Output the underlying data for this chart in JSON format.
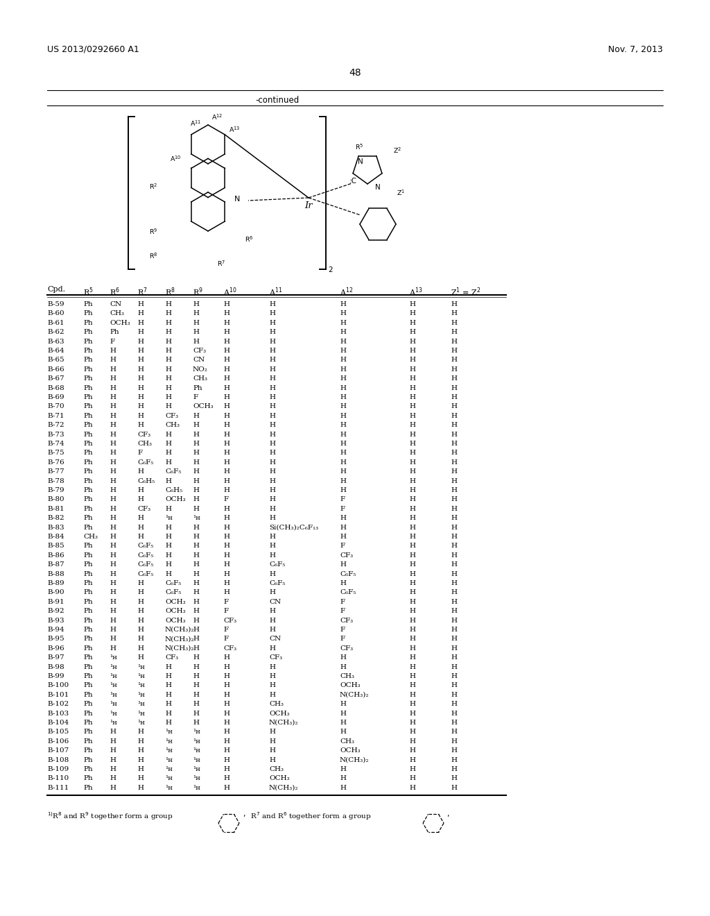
{
  "header_left": "US 2013/0292660 A1",
  "header_right": "Nov. 7, 2013",
  "page_number": "48",
  "continued_label": "-continued",
  "rows": [
    [
      "B-59",
      "Ph",
      "CN",
      "H",
      "H",
      "H",
      "H",
      "H",
      "H",
      "H",
      "H"
    ],
    [
      "B-60",
      "Ph",
      "CH₃",
      "H",
      "H",
      "H",
      "H",
      "H",
      "H",
      "H",
      "H"
    ],
    [
      "B-61",
      "Ph",
      "OCH₃",
      "H",
      "H",
      "H",
      "H",
      "H",
      "H",
      "H",
      "H"
    ],
    [
      "B-62",
      "Ph",
      "Ph",
      "H",
      "H",
      "H",
      "H",
      "H",
      "H",
      "H",
      "H"
    ],
    [
      "B-63",
      "Ph",
      "F",
      "H",
      "H",
      "H",
      "H",
      "H",
      "H",
      "H",
      "H"
    ],
    [
      "B-64",
      "Ph",
      "H",
      "H",
      "H",
      "CF₃",
      "H",
      "H",
      "H",
      "H",
      "H"
    ],
    [
      "B-65",
      "Ph",
      "H",
      "H",
      "H",
      "CN",
      "H",
      "H",
      "H",
      "H",
      "H"
    ],
    [
      "B-66",
      "Ph",
      "H",
      "H",
      "H",
      "NO₂",
      "H",
      "H",
      "H",
      "H",
      "H"
    ],
    [
      "B-67",
      "Ph",
      "H",
      "H",
      "H",
      "CH₃",
      "H",
      "H",
      "H",
      "H",
      "H"
    ],
    [
      "B-68",
      "Ph",
      "H",
      "H",
      "H",
      "Ph",
      "H",
      "H",
      "H",
      "H",
      "H"
    ],
    [
      "B-69",
      "Ph",
      "H",
      "H",
      "H",
      "F",
      "H",
      "H",
      "H",
      "H",
      "H"
    ],
    [
      "B-70",
      "Ph",
      "H",
      "H",
      "H",
      "OCH₃",
      "H",
      "H",
      "H",
      "H",
      "H"
    ],
    [
      "B-71",
      "Ph",
      "H",
      "H",
      "CF₃",
      "H",
      "H",
      "H",
      "H",
      "H",
      "H"
    ],
    [
      "B-72",
      "Ph",
      "H",
      "H",
      "CH₃",
      "H",
      "H",
      "H",
      "H",
      "H",
      "H"
    ],
    [
      "B-73",
      "Ph",
      "H",
      "CF₃",
      "H",
      "H",
      "H",
      "H",
      "H",
      "H",
      "H"
    ],
    [
      "B-74",
      "Ph",
      "H",
      "CH₃",
      "H",
      "H",
      "H",
      "H",
      "H",
      "H",
      "H"
    ],
    [
      "B-75",
      "Ph",
      "H",
      "F",
      "H",
      "H",
      "H",
      "H",
      "H",
      "H",
      "H"
    ],
    [
      "B-76",
      "Ph",
      "H",
      "C₆F₅",
      "H",
      "H",
      "H",
      "H",
      "H",
      "H",
      "H"
    ],
    [
      "B-77",
      "Ph",
      "H",
      "H",
      "C₆F₅",
      "H",
      "H",
      "H",
      "H",
      "H",
      "H"
    ],
    [
      "B-78",
      "Ph",
      "H",
      "C₆H₅",
      "H",
      "H",
      "H",
      "H",
      "H",
      "H",
      "H"
    ],
    [
      "B-79",
      "Ph",
      "H",
      "H",
      "C₆H₅",
      "H",
      "H",
      "H",
      "H",
      "H",
      "H"
    ],
    [
      "B-80",
      "Ph",
      "H",
      "H",
      "OCH₃",
      "H",
      "F",
      "H",
      "F",
      "H",
      "H"
    ],
    [
      "B-81",
      "Ph",
      "H",
      "CF₃",
      "H",
      "H",
      "H",
      "H",
      "F",
      "H",
      "H"
    ],
    [
      "B-82",
      "Ph",
      "H",
      "H",
      "¹ʜ",
      "¹ʜ",
      "H",
      "H",
      "H",
      "H",
      "H"
    ],
    [
      "B-83",
      "Ph",
      "H",
      "H",
      "H",
      "H",
      "H",
      "Si(CH₃)₂C₆F₁₃",
      "H",
      "H",
      "H"
    ],
    [
      "B-84",
      "CH₃",
      "H",
      "H",
      "H",
      "H",
      "H",
      "H",
      "H",
      "H",
      "H"
    ],
    [
      "B-85",
      "Ph",
      "H",
      "C₆F₅",
      "H",
      "H",
      "H",
      "H",
      "F",
      "H",
      "H"
    ],
    [
      "B-86",
      "Ph",
      "H",
      "C₆F₅",
      "H",
      "H",
      "H",
      "H",
      "CF₃",
      "H",
      "H"
    ],
    [
      "B-87",
      "Ph",
      "H",
      "C₆F₅",
      "H",
      "H",
      "H",
      "C₆F₅",
      "H",
      "H",
      "H"
    ],
    [
      "B-88",
      "Ph",
      "H",
      "C₆F₅",
      "H",
      "H",
      "H",
      "H",
      "C₆F₅",
      "H",
      "H"
    ],
    [
      "B-89",
      "Ph",
      "H",
      "H",
      "C₆F₅",
      "H",
      "H",
      "C₆F₅",
      "H",
      "H",
      "H"
    ],
    [
      "B-90",
      "Ph",
      "H",
      "H",
      "C₆F₅",
      "H",
      "H",
      "H",
      "C₆F₅",
      "H",
      "H"
    ],
    [
      "B-91",
      "Ph",
      "H",
      "H",
      "OCH₃",
      "H",
      "F",
      "CN",
      "F",
      "H",
      "H"
    ],
    [
      "B-92",
      "Ph",
      "H",
      "H",
      "OCH₃",
      "H",
      "F",
      "H",
      "F",
      "H",
      "H"
    ],
    [
      "B-93",
      "Ph",
      "H",
      "H",
      "OCH₃",
      "H",
      "CF₃",
      "H",
      "CF₃",
      "H",
      "H"
    ],
    [
      "B-94",
      "Ph",
      "H",
      "H",
      "N(CH₃)₂",
      "H",
      "F",
      "H",
      "F",
      "H",
      "H"
    ],
    [
      "B-95",
      "Ph",
      "H",
      "H",
      "N(CH₃)₂",
      "H",
      "F",
      "CN",
      "F",
      "H",
      "H"
    ],
    [
      "B-96",
      "Ph",
      "H",
      "H",
      "N(CH₃)₂",
      "H",
      "CF₃",
      "H",
      "CF₃",
      "H",
      "H"
    ],
    [
      "B-97",
      "Ph",
      "¹ʜ",
      "H",
      "CF₃",
      "H",
      "H",
      "CF₃",
      "H",
      "H",
      "H"
    ],
    [
      "B-98",
      "Ph",
      "¹ʜ",
      "¹ʜ",
      "H",
      "H",
      "H",
      "H",
      "H",
      "H",
      "H"
    ],
    [
      "B-99",
      "Ph",
      "¹ʜ",
      "¹ʜ",
      "H",
      "H",
      "H",
      "H",
      "CH₃",
      "H",
      "H"
    ],
    [
      "B-100",
      "Ph",
      "¹ʜ",
      "¹ʜ",
      "H",
      "H",
      "H",
      "H",
      "OCH₃",
      "H",
      "H"
    ],
    [
      "B-101",
      "Ph",
      "¹ʜ",
      "¹ʜ",
      "H",
      "H",
      "H",
      "H",
      "N(CH₃)₂",
      "H",
      "H"
    ],
    [
      "B-102",
      "Ph",
      "¹ʜ",
      "¹ʜ",
      "H",
      "H",
      "H",
      "CH₃",
      "H",
      "H",
      "H"
    ],
    [
      "B-103",
      "Ph",
      "¹ʜ",
      "¹ʜ",
      "H",
      "H",
      "H",
      "OCH₃",
      "H",
      "H",
      "H"
    ],
    [
      "B-104",
      "Ph",
      "¹ʜ",
      "¹ʜ",
      "H",
      "H",
      "H",
      "N(CH₃)₂",
      "H",
      "H",
      "H"
    ],
    [
      "B-105",
      "Ph",
      "H",
      "H",
      "¹ʜ",
      "¹ʜ",
      "H",
      "H",
      "H",
      "H",
      "H"
    ],
    [
      "B-106",
      "Ph",
      "H",
      "H",
      "¹ʜ",
      "¹ʜ",
      "H",
      "H",
      "CH₃",
      "H",
      "H"
    ],
    [
      "B-107",
      "Ph",
      "H",
      "H",
      "¹ʜ",
      "¹ʜ",
      "H",
      "H",
      "OCH₃",
      "H",
      "H"
    ],
    [
      "B-108",
      "Ph",
      "H",
      "H",
      "¹ʜ",
      "¹ʜ",
      "H",
      "H",
      "N(CH₃)₂",
      "H",
      "H"
    ],
    [
      "B-109",
      "Ph",
      "H",
      "H",
      "¹ʜ",
      "¹ʜ",
      "H",
      "CH₃",
      "H",
      "H",
      "H"
    ],
    [
      "B-110",
      "Ph",
      "H",
      "H",
      "¹ʜ",
      "¹ʜ",
      "H",
      "OCH₃",
      "H",
      "H",
      "H"
    ],
    [
      "B-111",
      "Ph",
      "H",
      "H",
      "¹ʜ",
      "¹ʜ",
      "H",
      "N(CH₃)₂",
      "H",
      "H",
      "H"
    ]
  ],
  "bg_color": "#ffffff",
  "text_color": "#000000"
}
